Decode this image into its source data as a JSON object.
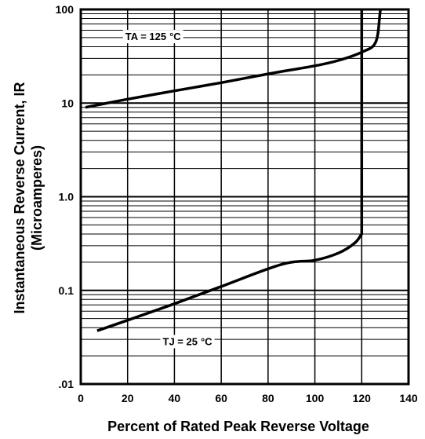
{
  "chart_data": {
    "type": "line",
    "xlabel": "Percent of Rated Peak Reverse Voltage",
    "ylabel_line1": "Instantaneous Reverse Current, IR",
    "ylabel_line2": "(Microamperes)",
    "xlim": [
      0,
      140
    ],
    "ylim": [
      0.01,
      100
    ],
    "yscale": "log",
    "grid": true,
    "x_ticks": [
      0,
      20,
      40,
      60,
      80,
      100,
      120,
      140
    ],
    "x_tick_labels": [
      "0",
      "20",
      "40",
      "60",
      "80",
      "100",
      "120",
      "140"
    ],
    "y_ticks": [
      0.01,
      0.1,
      1.0,
      10,
      100
    ],
    "y_tick_labels": [
      ".01",
      "0.1",
      "1.0",
      "10",
      "100"
    ],
    "series": [
      {
        "name": "TA = 125 °C",
        "label_main": "TA = 125",
        "label_unit": "°C",
        "x": [
          2,
          20,
          40,
          60,
          80,
          100,
          110,
          120,
          126,
          128
        ],
        "y": [
          9,
          11,
          13.5,
          16.5,
          20.5,
          25,
          28.5,
          35,
          45,
          100
        ]
      },
      {
        "name": "TJ = 25 °C",
        "label_main": "TJ = 25",
        "label_unit": "°C",
        "x": [
          7,
          20,
          40,
          60,
          80,
          90,
          100,
          110,
          117,
          120,
          120
        ],
        "y": [
          0.037,
          0.048,
          0.072,
          0.11,
          0.17,
          0.2,
          0.21,
          0.25,
          0.32,
          0.4,
          100
        ]
      }
    ]
  }
}
